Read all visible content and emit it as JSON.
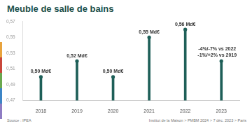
{
  "chart_data": {
    "type": "bar",
    "title": "Meuble de salle de bains",
    "categories": [
      "2018",
      "2019",
      "2020",
      "2021",
      "2022",
      "2023"
    ],
    "values": [
      0.5,
      0.52,
      0.5,
      0.55,
      0.56,
      0.52
    ],
    "value_labels": [
      "0,50 Md€",
      "0,52 Md€",
      "0,50 Md€",
      "0,55 Md€",
      "0,56 Md€",
      null
    ],
    "data_labels": true,
    "color": "#1e5f58",
    "ylim": [
      0.47,
      0.57
    ],
    "yticks": [
      {
        "value": 0.47,
        "label": "0,47"
      },
      {
        "value": 0.49,
        "label": "0,49"
      },
      {
        "value": 0.51,
        "label": "0,51"
      },
      {
        "value": 0.53,
        "label": "0,53"
      },
      {
        "value": 0.55,
        "label": "0,55"
      },
      {
        "value": 0.57,
        "label": "0,57"
      }
    ],
    "grid": false,
    "annotations": [
      "-4%/-7% vs 2022",
      "-1%/+2% vs 2019"
    ],
    "source": "Source : IPEA",
    "credit": "Institut de la Maison > PMBM 2024 > 7 déc. 2023 > Paris"
  }
}
